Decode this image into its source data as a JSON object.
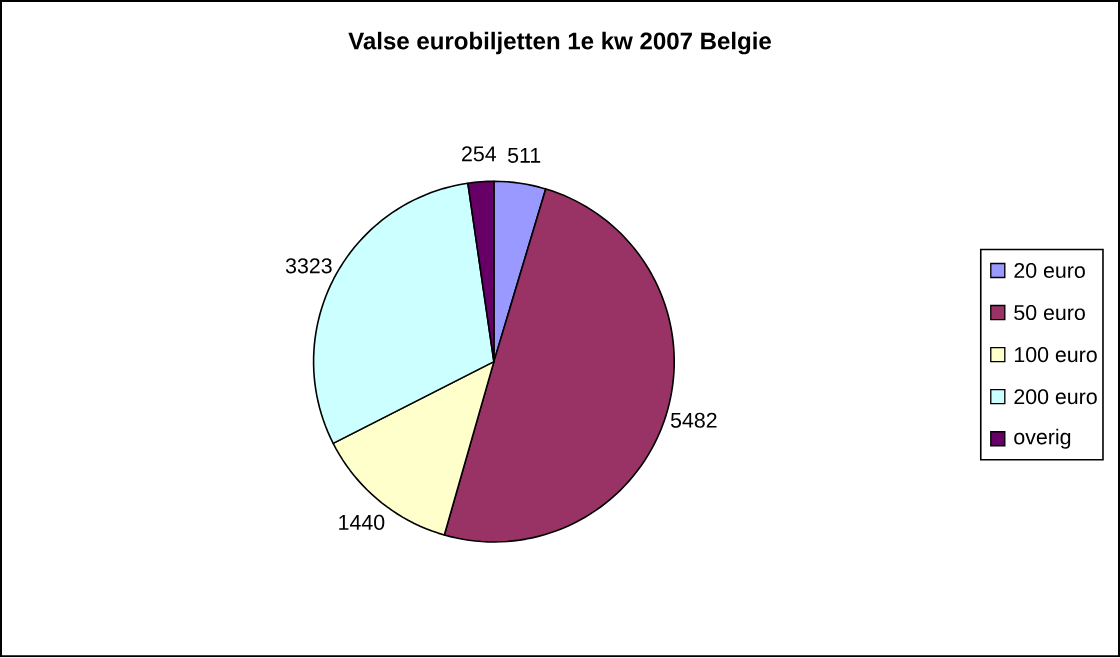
{
  "chart_data": {
    "type": "pie",
    "title": "Valse eurobiljetten 1e kw 2007 Belgie",
    "categories": [
      "20 euro",
      "50 euro",
      "100 euro",
      "200 euro",
      "overig"
    ],
    "values": [
      511,
      5482,
      1440,
      3323,
      254
    ],
    "colors": [
      "#9999ff",
      "#993366",
      "#ffffcc",
      "#ccffff",
      "#660066"
    ],
    "data_labels": true,
    "legend": "right"
  }
}
